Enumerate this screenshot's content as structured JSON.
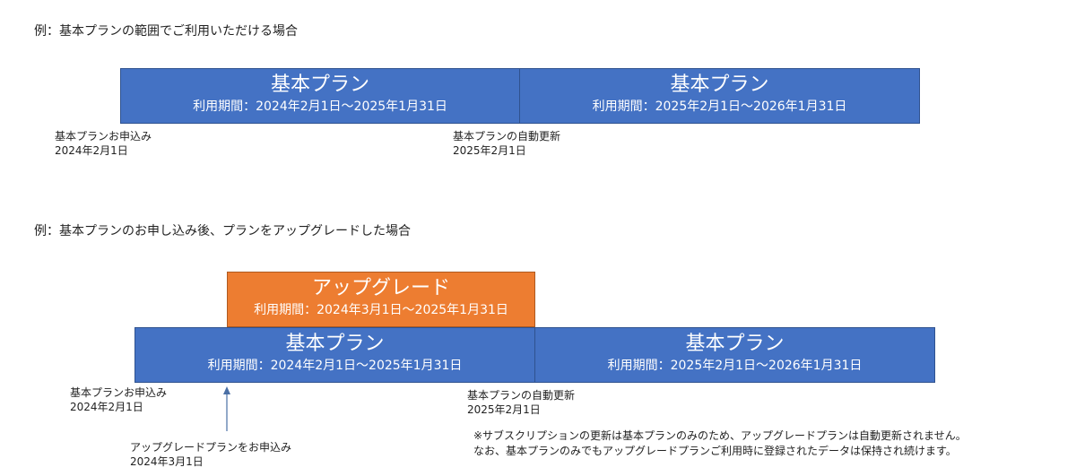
{
  "example1": {
    "heading": "例：基本プランの範囲でご利用いただける場合",
    "box1": {
      "title": "基本プラン",
      "period": "利用期間：2024年2月1日～2025年1月31日"
    },
    "box2": {
      "title": "基本プラン",
      "period": "利用期間：2025年2月1日～2026年1月31日"
    },
    "label_start": {
      "line1": "基本プランお申込み",
      "line2": "2024年2月1日"
    },
    "label_renew": {
      "line1": "基本プランの自動更新",
      "line2": "2025年2月1日"
    }
  },
  "example2": {
    "heading": "例：基本プランのお申し込み後、プランをアップグレードした場合",
    "upgrade_box": {
      "title": "アップグレード",
      "period": "利用期間：2024年3月1日～2025年1月31日"
    },
    "box1": {
      "title": "基本プラン",
      "period": "利用期間：2024年2月1日～2025年1月31日"
    },
    "box2": {
      "title": "基本プラン",
      "period": "利用期間：2025年2月1日～2026年1月31日"
    },
    "label_start": {
      "line1": "基本プランお申込み",
      "line2": "2024年2月1日"
    },
    "label_renew": {
      "line1": "基本プランの自動更新",
      "line2": "2025年2月1日"
    },
    "label_upgrade": {
      "line1": "アップグレードプランをお申込み",
      "line2": "2024年3月1日"
    },
    "note": {
      "line1": "※サブスクリプションの更新は基本プランのみのため、アップグレードプランは自動更新されません。",
      "line2": "なお、基本プランのみでもアップグレードプランご利用時に登録されたデータは保持され続けます。"
    }
  },
  "colors": {
    "basic": "#4472c4",
    "upgrade": "#ed7d31",
    "arrow": "#4a6fa5"
  }
}
